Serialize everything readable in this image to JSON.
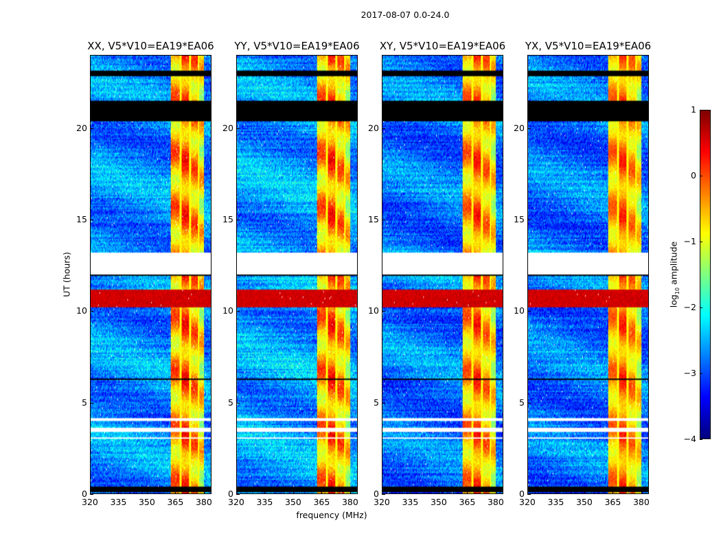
{
  "chart_data": {
    "type": "heatmap",
    "title": "2017-08-07 0.0-24.0",
    "xlabel": "frequency (MHz)",
    "ylabel": "UT (hours)",
    "xlim": [
      320,
      384
    ],
    "ylim": [
      0,
      24
    ],
    "x_ticks": [
      320,
      335,
      350,
      365,
      380
    ],
    "y_ticks": [
      0,
      5,
      10,
      15,
      20
    ],
    "panels": [
      {
        "title": "XX, V5*V10=EA19*EA06",
        "baseline": -2.7,
        "rfi_strength": 1.0
      },
      {
        "title": "YY, V5*V10=EA19*EA06",
        "baseline": -2.6,
        "rfi_strength": 1.0
      },
      {
        "title": "XY, V5*V10=EA19*EA06",
        "baseline": -2.8,
        "rfi_strength": 0.9
      },
      {
        "title": "YX, V5*V10=EA19*EA06",
        "baseline": -2.8,
        "rfi_strength": 0.8
      }
    ],
    "colorbar": {
      "label": "log",
      "label_sub": "10",
      "label_rest": " amplitude",
      "clim": [
        -4,
        1
      ],
      "ticks": [
        1,
        0,
        -1,
        -2,
        -3,
        -4
      ],
      "tick_labels": [
        "1",
        "0",
        "−1",
        "−2",
        "−3",
        "−4"
      ],
      "colormap": "jet"
    },
    "no_data_hours": [
      [
        12.0,
        13.2
      ],
      [
        3.35,
        3.6
      ],
      [
        4.0,
        4.1
      ],
      [
        3.0,
        3.1
      ]
    ],
    "flagged_hours": [
      [
        20.4,
        21.5
      ],
      [
        0.05,
        0.35
      ],
      [
        6.2,
        6.3
      ],
      [
        11.95,
        12.1
      ],
      [
        22.9,
        23.2
      ]
    ],
    "rfi_channel_bands_mhz": [
      [
        362.5,
        367.5
      ],
      [
        368.5,
        372.5
      ],
      [
        373.5,
        377
      ],
      [
        378,
        380.5
      ]
    ],
    "rfi_time_hours": [
      [
        10.2,
        11.2
      ]
    ],
    "rfi_time_level": 0.6
  }
}
